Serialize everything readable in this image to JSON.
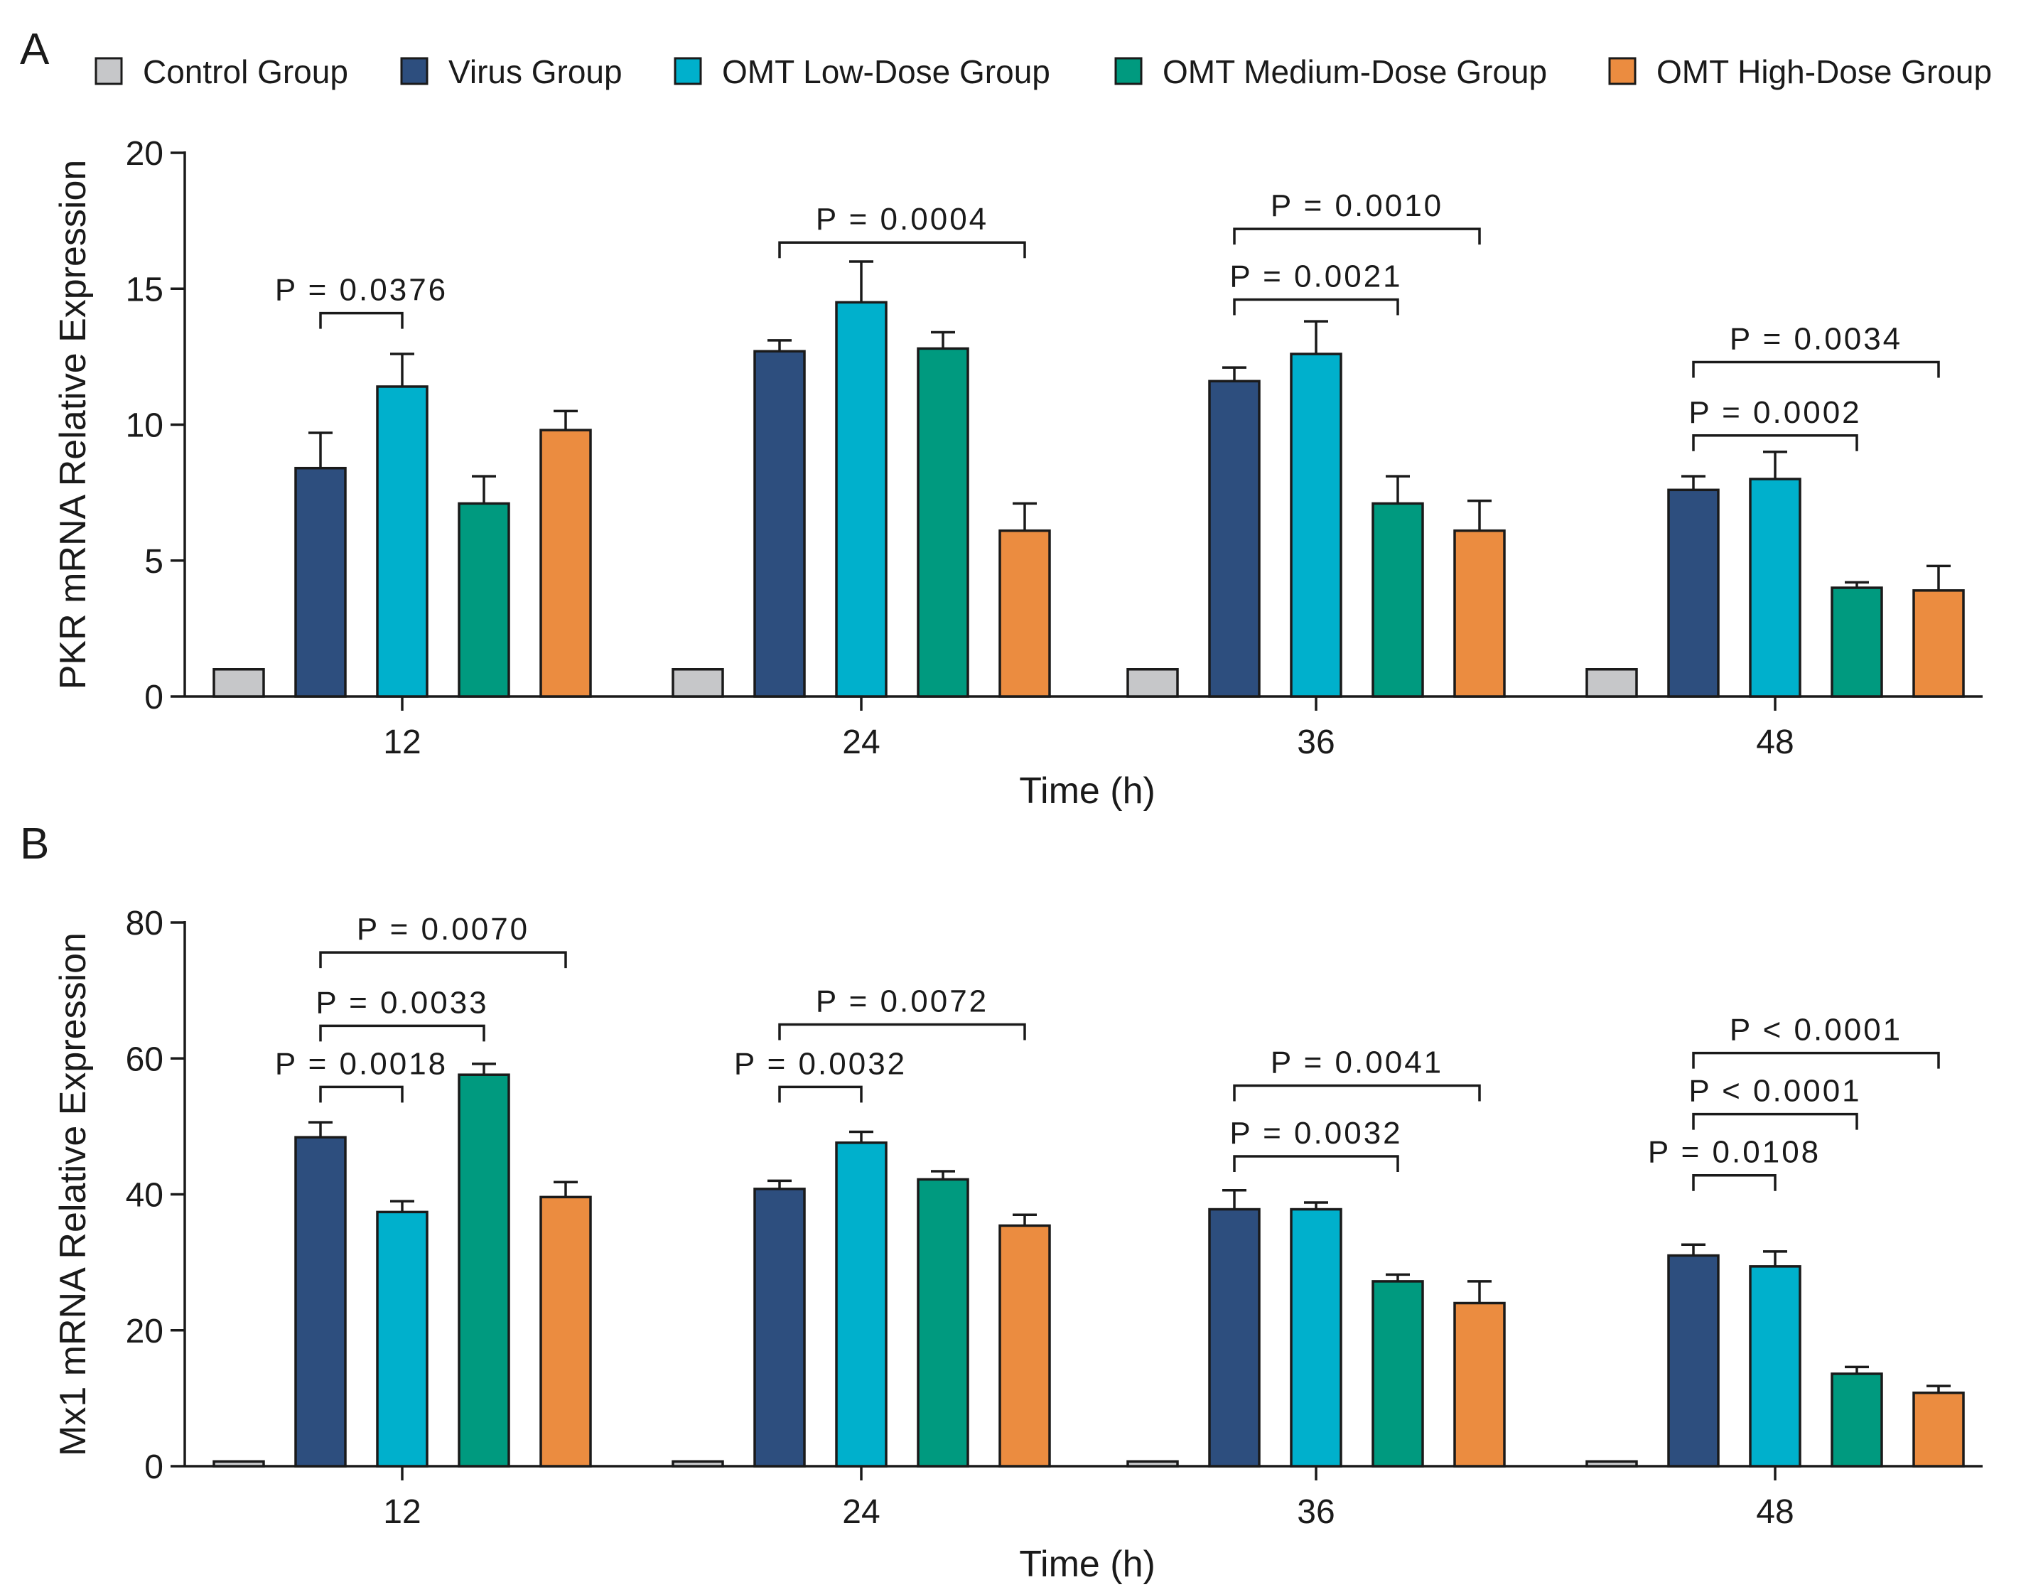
{
  "colors": {
    "control": "#c6c7c9",
    "virus": "#2d4e7e",
    "low": "#00b0cc",
    "medium": "#009a7f",
    "high": "#eb8c40"
  },
  "legend": [
    {
      "key": "control",
      "label": "Control Group"
    },
    {
      "key": "virus",
      "label": "Virus Group"
    },
    {
      "key": "low",
      "label": "OMT Low-Dose Group"
    },
    {
      "key": "medium",
      "label": "OMT Medium-Dose Group"
    },
    {
      "key": "high",
      "label": "OMT High-Dose Group"
    }
  ],
  "chart_data": [
    {
      "panel": "A",
      "type": "bar",
      "ylabel": "PKR mRNA Relative Expression",
      "xlabel": "Time (h)",
      "categories": [
        "12",
        "24",
        "36",
        "48"
      ],
      "ylim": [
        0,
        20
      ],
      "yticks": [
        0,
        5,
        10,
        15,
        20
      ],
      "series": [
        {
          "name": "Control Group",
          "key": "control",
          "values": [
            1.0,
            1.0,
            1.0,
            1.0
          ],
          "errors": [
            0,
            0,
            0,
            0
          ]
        },
        {
          "name": "Virus Group",
          "key": "virus",
          "values": [
            8.4,
            12.7,
            11.6,
            7.6
          ],
          "errors": [
            1.3,
            0.4,
            0.5,
            0.5
          ]
        },
        {
          "name": "OMT Low-Dose Group",
          "key": "low",
          "values": [
            11.4,
            14.5,
            12.6,
            8.0
          ],
          "errors": [
            1.2,
            1.5,
            1.2,
            1.0
          ]
        },
        {
          "name": "OMT Medium-Dose Group",
          "key": "medium",
          "values": [
            7.1,
            12.8,
            7.1,
            4.0
          ],
          "errors": [
            1.0,
            0.6,
            1.0,
            0.2
          ]
        },
        {
          "name": "OMT High-Dose Group",
          "key": "high",
          "values": [
            9.8,
            6.1,
            6.1,
            3.9
          ],
          "errors": [
            0.7,
            1.0,
            1.1,
            0.9
          ]
        }
      ],
      "comparisons": [
        {
          "category": 0,
          "from": 1,
          "to": 2,
          "y": 14.1,
          "label": "P = 0.0376"
        },
        {
          "category": 1,
          "from": 1,
          "to": 4,
          "y": 16.7,
          "label": "P = 0.0004"
        },
        {
          "category": 2,
          "from": 1,
          "to": 3,
          "y": 14.6,
          "label": "P = 0.0021"
        },
        {
          "category": 2,
          "from": 1,
          "to": 4,
          "y": 17.2,
          "label": "P = 0.0010"
        },
        {
          "category": 3,
          "from": 1,
          "to": 3,
          "y": 9.6,
          "label": "P = 0.0002"
        },
        {
          "category": 3,
          "from": 1,
          "to": 4,
          "y": 12.3,
          "label": "P = 0.0034"
        }
      ]
    },
    {
      "panel": "B",
      "type": "bar",
      "ylabel": "Mx1 mRNA Relative Expression",
      "xlabel": "Time (h)",
      "categories": [
        "12",
        "24",
        "36",
        "48"
      ],
      "ylim": [
        0,
        80
      ],
      "yticks": [
        0,
        20,
        40,
        60,
        80
      ],
      "series": [
        {
          "name": "Control Group",
          "key": "control",
          "values": [
            0.7,
            0.7,
            0.7,
            0.7
          ],
          "errors": [
            0,
            0,
            0,
            0
          ]
        },
        {
          "name": "Virus Group",
          "key": "virus",
          "values": [
            48.4,
            40.8,
            37.8,
            31.0
          ],
          "errors": [
            2.2,
            1.2,
            2.8,
            1.6
          ]
        },
        {
          "name": "OMT Low-Dose Group",
          "key": "low",
          "values": [
            37.4,
            47.6,
            37.8,
            29.4
          ],
          "errors": [
            1.6,
            1.6,
            1.0,
            2.2
          ]
        },
        {
          "name": "OMT Medium-Dose Group",
          "key": "medium",
          "values": [
            57.6,
            42.2,
            27.2,
            13.6
          ],
          "errors": [
            1.6,
            1.2,
            1.0,
            1.0
          ]
        },
        {
          "name": "OMT High-Dose Group",
          "key": "high",
          "values": [
            39.6,
            35.4,
            24.0,
            10.8
          ],
          "errors": [
            2.2,
            1.6,
            3.2,
            1.0
          ]
        }
      ],
      "comparisons": [
        {
          "category": 0,
          "from": 1,
          "to": 2,
          "y": 55.8,
          "label": "P = 0.0018"
        },
        {
          "category": 0,
          "from": 1,
          "to": 3,
          "y": 64.8,
          "label": "P = 0.0033"
        },
        {
          "category": 0,
          "from": 1,
          "to": 4,
          "y": 75.6,
          "label": "P = 0.0070"
        },
        {
          "category": 1,
          "from": 1,
          "to": 2,
          "y": 55.8,
          "label": "P = 0.0032"
        },
        {
          "category": 1,
          "from": 1,
          "to": 4,
          "y": 65.0,
          "label": "P = 0.0072"
        },
        {
          "category": 2,
          "from": 1,
          "to": 3,
          "y": 45.6,
          "label": "P = 0.0032"
        },
        {
          "category": 2,
          "from": 1,
          "to": 4,
          "y": 56.0,
          "label": "P = 0.0041"
        },
        {
          "category": 3,
          "from": 1,
          "to": 2,
          "y": 42.8,
          "label": "P = 0.0108"
        },
        {
          "category": 3,
          "from": 1,
          "to": 3,
          "y": 51.8,
          "label": "P < 0.0001"
        },
        {
          "category": 3,
          "from": 1,
          "to": 4,
          "y": 60.8,
          "label": "P < 0.0001"
        }
      ]
    }
  ]
}
